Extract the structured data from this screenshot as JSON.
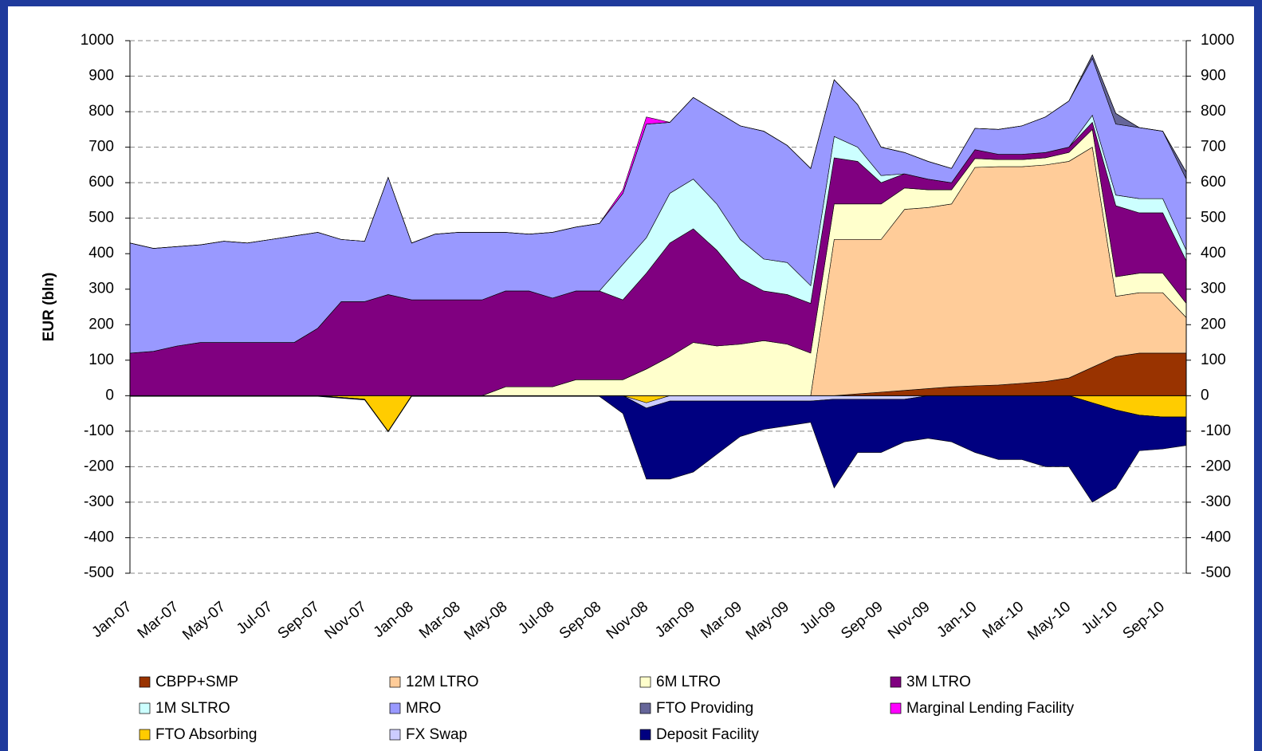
{
  "chart_data": {
    "type": "stacked_area",
    "y_label": "EUR (bln)",
    "categories": [
      "Jan-07",
      null,
      "Mar-07",
      null,
      "May-07",
      null,
      "Jul-07",
      null,
      "Sep-07",
      null,
      "Nov-07",
      null,
      "Jan-08",
      null,
      "Mar-08",
      null,
      "May-08",
      null,
      "Jul-08",
      null,
      "Sep-08",
      null,
      "Nov-08",
      null,
      "Jan-09",
      null,
      "Mar-09",
      null,
      "May-09",
      null,
      "Jul-09",
      null,
      "Sep-09",
      null,
      "Nov-09",
      null,
      "Jan-10",
      null,
      "Mar-10",
      null,
      "May-10",
      null,
      "Jul-10",
      null,
      "Sep-10",
      null
    ],
    "ylim": [
      -500,
      1000
    ],
    "yticks": [
      -500,
      -400,
      -300,
      -200,
      -100,
      0,
      100,
      200,
      300,
      400,
      500,
      600,
      700,
      800,
      900,
      1000
    ],
    "grid": true,
    "series": [
      {
        "name": "CBPP+SMP",
        "color": "#993300",
        "values": [
          0,
          0,
          0,
          0,
          0,
          0,
          0,
          0,
          0,
          0,
          0,
          0,
          0,
          0,
          0,
          0,
          0,
          0,
          0,
          0,
          0,
          0,
          0,
          0,
          0,
          0,
          0,
          0,
          0,
          0,
          0,
          5,
          10,
          15,
          20,
          25,
          28,
          30,
          35,
          40,
          50,
          80,
          110,
          120,
          120,
          120
        ]
      },
      {
        "name": "12M LTRO",
        "color": "#ffcc99",
        "values": [
          0,
          0,
          0,
          0,
          0,
          0,
          0,
          0,
          0,
          0,
          0,
          0,
          0,
          0,
          0,
          0,
          0,
          0,
          0,
          0,
          0,
          0,
          0,
          0,
          0,
          0,
          0,
          0,
          0,
          0,
          440,
          435,
          430,
          510,
          510,
          515,
          615,
          615,
          610,
          610,
          610,
          620,
          170,
          170,
          170,
          100
        ]
      },
      {
        "name": "6M LTRO",
        "color": "#ffffcc",
        "values": [
          0,
          0,
          0,
          0,
          0,
          0,
          0,
          0,
          0,
          0,
          0,
          0,
          0,
          0,
          0,
          0,
          25,
          25,
          25,
          45,
          45,
          45,
          75,
          110,
          150,
          140,
          145,
          155,
          145,
          120,
          100,
          100,
          100,
          60,
          50,
          40,
          25,
          20,
          20,
          20,
          25,
          50,
          55,
          55,
          55,
          40
        ]
      },
      {
        "name": "3M LTRO",
        "color": "#800080",
        "values": [
          120,
          125,
          140,
          150,
          150,
          150,
          150,
          150,
          190,
          265,
          265,
          285,
          270,
          270,
          270,
          270,
          270,
          270,
          250,
          250,
          250,
          225,
          270,
          320,
          320,
          270,
          185,
          140,
          140,
          140,
          130,
          120,
          60,
          40,
          30,
          20,
          25,
          15,
          15,
          15,
          15,
          20,
          200,
          170,
          170,
          120
        ]
      },
      {
        "name": "1M SLTRO",
        "color": "#ccffff",
        "values": [
          0,
          0,
          0,
          0,
          0,
          0,
          0,
          0,
          0,
          0,
          0,
          0,
          0,
          0,
          0,
          0,
          0,
          0,
          0,
          0,
          0,
          100,
          100,
          140,
          140,
          130,
          110,
          90,
          90,
          50,
          60,
          40,
          20,
          0,
          0,
          0,
          0,
          0,
          0,
          0,
          0,
          20,
          30,
          40,
          40,
          30
        ]
      },
      {
        "name": "MRO",
        "color": "#9999ff",
        "values": [
          310,
          290,
          280,
          275,
          285,
          280,
          290,
          300,
          270,
          175,
          170,
          330,
          160,
          185,
          190,
          190,
          165,
          160,
          185,
          180,
          190,
          200,
          320,
          200,
          230,
          260,
          320,
          360,
          330,
          330,
          160,
          120,
          80,
          60,
          50,
          40,
          60,
          70,
          80,
          100,
          130,
          160,
          200,
          200,
          190,
          200
        ]
      },
      {
        "name": "FTO Providing",
        "color": "#666699",
        "values": [
          0,
          0,
          0,
          0,
          0,
          0,
          0,
          0,
          0,
          0,
          0,
          0,
          0,
          0,
          0,
          0,
          0,
          0,
          0,
          0,
          0,
          0,
          0,
          0,
          0,
          0,
          0,
          0,
          0,
          0,
          0,
          0,
          0,
          0,
          0,
          0,
          0,
          0,
          0,
          0,
          0,
          10,
          30,
          0,
          0,
          20
        ]
      },
      {
        "name": "Marginal Lending Facility",
        "color": "#ff00ff",
        "values": [
          0,
          0,
          0,
          0,
          0,
          0,
          0,
          0,
          0,
          0,
          0,
          0,
          0,
          0,
          0,
          0,
          0,
          0,
          0,
          0,
          0,
          10,
          20,
          0,
          0,
          0,
          0,
          0,
          0,
          0,
          0,
          0,
          0,
          0,
          0,
          0,
          0,
          0,
          0,
          0,
          0,
          0,
          0,
          0,
          0,
          0
        ]
      },
      {
        "name": "FTO Absorbing",
        "color": "#ffcc00",
        "values": [
          0,
          0,
          0,
          0,
          0,
          0,
          0,
          0,
          0,
          -5,
          -10,
          -100,
          0,
          0,
          0,
          0,
          0,
          0,
          0,
          0,
          0,
          0,
          -20,
          0,
          0,
          0,
          0,
          0,
          0,
          0,
          0,
          0,
          0,
          0,
          0,
          0,
          0,
          0,
          0,
          0,
          0,
          -20,
          -40,
          -55,
          -60,
          -60
        ]
      },
      {
        "name": "FX Swap",
        "color": "#ccccff",
        "values": [
          0,
          0,
          0,
          0,
          0,
          0,
          0,
          0,
          0,
          0,
          0,
          0,
          0,
          0,
          0,
          0,
          0,
          0,
          0,
          0,
          0,
          0,
          -15,
          -15,
          -15,
          -15,
          -15,
          -15,
          -15,
          -15,
          -10,
          -10,
          -10,
          -10,
          0,
          0,
          0,
          0,
          0,
          0,
          0,
          0,
          0,
          0,
          0,
          0
        ]
      },
      {
        "name": "Deposit Facility",
        "color": "#000080",
        "values": [
          -2,
          -2,
          -2,
          -2,
          -2,
          -2,
          -2,
          -2,
          -2,
          -2,
          -2,
          -2,
          -2,
          -2,
          -2,
          -2,
          -2,
          -2,
          -2,
          -2,
          -2,
          -50,
          -200,
          -220,
          -200,
          -150,
          -100,
          -80,
          -70,
          -60,
          -250,
          -150,
          -150,
          -120,
          -120,
          -130,
          -160,
          -180,
          -180,
          -200,
          -200,
          -280,
          -220,
          -100,
          -90,
          -80
        ]
      }
    ]
  }
}
